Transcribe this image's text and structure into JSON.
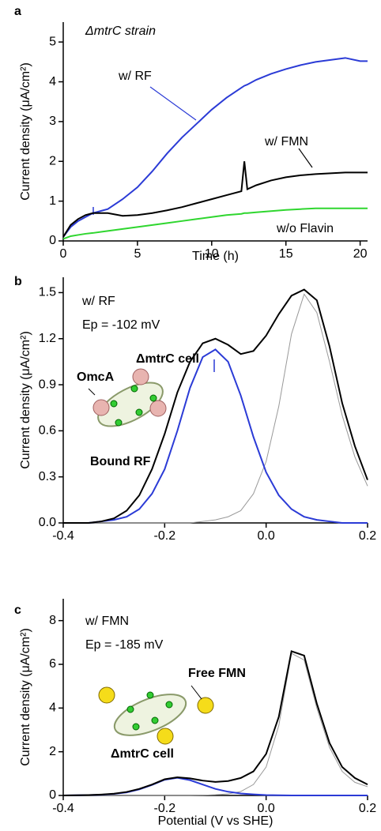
{
  "chart_data": [
    {
      "type": "line",
      "panel": "a",
      "xlabel": "Time (h)",
      "ylabel": "Current density (μA/cm²)",
      "annotations": [
        "ΔmtrC strain"
      ],
      "x": [
        0,
        0.5,
        1,
        1.5,
        2,
        3,
        4,
        5,
        6,
        7,
        8,
        9,
        10,
        11,
        12,
        12.2,
        12.4,
        13,
        14,
        15,
        16,
        17,
        18,
        19,
        20,
        20.5
      ],
      "series": [
        {
          "name": "w/ RF",
          "color": "#2b3bd6",
          "values": [
            0.1,
            0.35,
            0.5,
            0.6,
            0.7,
            0.8,
            1.05,
            1.35,
            1.75,
            2.2,
            2.6,
            2.95,
            3.3,
            3.6,
            3.85,
            3.9,
            3.93,
            4.05,
            4.2,
            4.32,
            4.42,
            4.5,
            4.55,
            4.6,
            4.52,
            4.52
          ]
        },
        {
          "name": "w/ FMN",
          "color": "#000000",
          "values": [
            0.1,
            0.4,
            0.55,
            0.65,
            0.7,
            0.7,
            0.63,
            0.65,
            0.7,
            0.77,
            0.85,
            0.95,
            1.05,
            1.15,
            1.25,
            2.0,
            1.3,
            1.4,
            1.52,
            1.6,
            1.65,
            1.68,
            1.7,
            1.72,
            1.72,
            1.72
          ]
        },
        {
          "name": "w/o Flavin",
          "color": "#2fd62f",
          "values": [
            0.05,
            0.12,
            0.15,
            0.18,
            0.2,
            0.25,
            0.3,
            0.35,
            0.4,
            0.45,
            0.5,
            0.55,
            0.6,
            0.65,
            0.68,
            0.7,
            0.7,
            0.72,
            0.75,
            0.78,
            0.8,
            0.82,
            0.82,
            0.82,
            0.82,
            0.82
          ]
        }
      ],
      "xlim": [
        0,
        20.5
      ],
      "xticks": [
        0,
        5,
        10,
        15,
        20
      ],
      "ylim": [
        0,
        5.5
      ],
      "yticks": [
        0,
        1,
        2,
        3,
        4,
        5
      ]
    },
    {
      "type": "line",
      "panel": "b",
      "ylabel": "Current density (μA/cm²)",
      "annotations": [
        "w/ RF",
        "Ep = -102 mV",
        "ΔmtrC cell",
        "OmcA",
        "Bound RF"
      ],
      "x": [
        -0.4,
        -0.375,
        -0.35,
        -0.325,
        -0.3,
        -0.275,
        -0.25,
        -0.225,
        -0.2,
        -0.175,
        -0.15,
        -0.125,
        -0.1,
        -0.075,
        -0.05,
        -0.025,
        0,
        0.025,
        0.05,
        0.075,
        0.1,
        0.125,
        0.15,
        0.175,
        0.2
      ],
      "series": [
        {
          "color": "#999999",
          "values": [
            0,
            0,
            0,
            0,
            0,
            0,
            0,
            0,
            0,
            0,
            0,
            0.01,
            0.02,
            0.04,
            0.08,
            0.19,
            0.4,
            0.76,
            1.23,
            1.49,
            1.37,
            1.05,
            0.7,
            0.43,
            0.24
          ]
        },
        {
          "color": "#2b3bd6",
          "values": [
            0,
            0,
            0,
            0.01,
            0.02,
            0.04,
            0.09,
            0.19,
            0.35,
            0.6,
            0.88,
            1.08,
            1.13,
            1.05,
            0.83,
            0.56,
            0.33,
            0.18,
            0.09,
            0.04,
            0.02,
            0.01,
            0,
            0,
            0
          ]
        },
        {
          "color": "#000000",
          "values": [
            0,
            0,
            0,
            0.01,
            0.03,
            0.08,
            0.18,
            0.35,
            0.58,
            0.85,
            1.05,
            1.17,
            1.2,
            1.16,
            1.1,
            1.12,
            1.22,
            1.36,
            1.48,
            1.52,
            1.45,
            1.15,
            0.78,
            0.5,
            0.28
          ]
        }
      ],
      "xlim": [
        -0.4,
        0.2
      ],
      "xticks": [
        -0.4,
        -0.2,
        {
          "value": 0,
          "label": "0.0"
        },
        0.2
      ],
      "ylim": [
        0,
        1.6
      ],
      "yticks": [
        {
          "value": 0,
          "label": "0.0"
        },
        0.3,
        0.6,
        0.9,
        1.2,
        1.5
      ]
    },
    {
      "type": "line",
      "panel": "c",
      "xlabel": "Potential (V vs SHE)",
      "ylabel": "Current density (μA/cm²)",
      "annotations": [
        "w/ FMN",
        "Ep = -185 mV",
        "Free FMN",
        "ΔmtrC cell"
      ],
      "x": [
        -0.4,
        -0.375,
        -0.35,
        -0.325,
        -0.3,
        -0.275,
        -0.25,
        -0.225,
        -0.2,
        -0.175,
        -0.15,
        -0.125,
        -0.1,
        -0.075,
        -0.05,
        -0.025,
        0,
        0.025,
        0.05,
        0.075,
        0.1,
        0.125,
        0.15,
        0.175,
        0.2
      ],
      "series": [
        {
          "color": "#999999",
          "values": [
            0,
            0,
            0,
            0,
            0,
            0,
            0,
            0,
            0,
            0,
            0,
            0.01,
            0.03,
            0.07,
            0.18,
            0.5,
            1.3,
            3.2,
            6.5,
            6.2,
            4.0,
            2.2,
            1.1,
            0.6,
            0.4
          ]
        },
        {
          "color": "#2b3bd6",
          "values": [
            0,
            0.01,
            0.02,
            0.03,
            0.07,
            0.14,
            0.28,
            0.48,
            0.72,
            0.81,
            0.7,
            0.5,
            0.3,
            0.17,
            0.09,
            0.05,
            0.02,
            0.01,
            0,
            0,
            0,
            0,
            0,
            0,
            0
          ]
        },
        {
          "color": "#000000",
          "values": [
            0,
            0.01,
            0.02,
            0.04,
            0.08,
            0.16,
            0.3,
            0.5,
            0.74,
            0.83,
            0.78,
            0.68,
            0.62,
            0.66,
            0.8,
            1.1,
            1.9,
            3.6,
            6.6,
            6.4,
            4.2,
            2.4,
            1.3,
            0.8,
            0.5
          ]
        }
      ],
      "xlim": [
        -0.4,
        0.2
      ],
      "xticks": [
        -0.4,
        -0.2,
        {
          "value": 0,
          "label": "0.0"
        },
        0.2
      ],
      "ylim": [
        0,
        9
      ],
      "yticks": [
        0,
        2,
        4,
        6,
        8
      ]
    }
  ]
}
